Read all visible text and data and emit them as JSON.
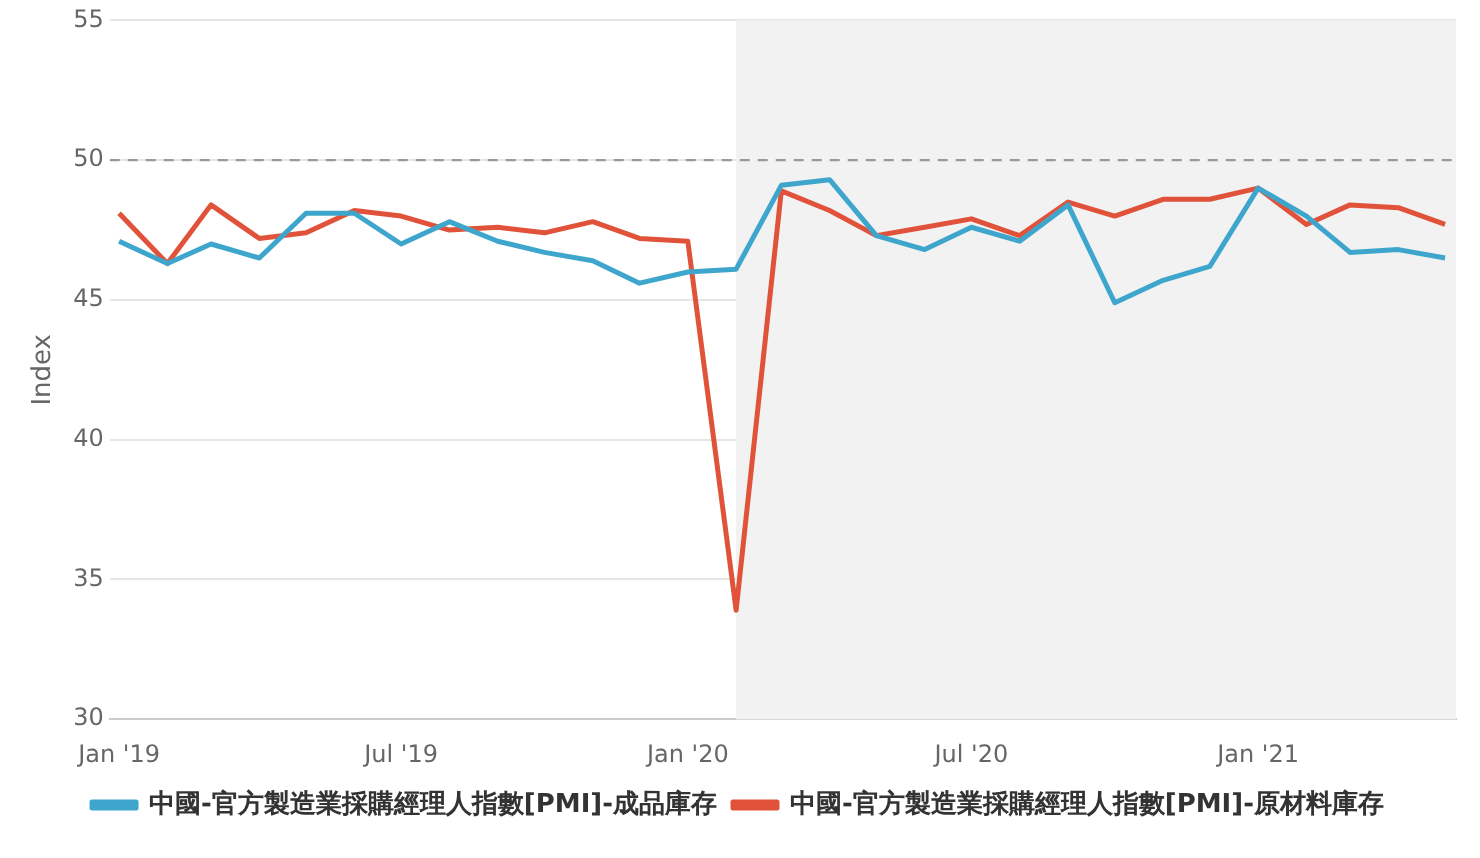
{
  "chart_data": {
    "type": "line",
    "ylabel": "Index",
    "x": [
      "2019-01",
      "2019-02",
      "2019-03",
      "2019-04",
      "2019-05",
      "2019-06",
      "2019-07",
      "2019-08",
      "2019-09",
      "2019-10",
      "2019-11",
      "2019-12",
      "2020-01",
      "2020-02",
      "2020-03",
      "2020-04",
      "2020-05",
      "2020-06",
      "2020-07",
      "2020-08",
      "2020-09",
      "2020-10",
      "2020-11",
      "2020-12",
      "2021-01",
      "2021-02",
      "2021-03",
      "2021-04",
      "2021-05"
    ],
    "series": [
      {
        "name": "中國-官方製造業採購經理人指數[PMI]-成品庫存",
        "color": "#3ea6cc",
        "values": [
          47.1,
          46.3,
          47.0,
          46.5,
          48.1,
          48.1,
          47.0,
          47.8,
          47.1,
          46.7,
          46.4,
          45.6,
          46.0,
          46.1,
          49.1,
          49.3,
          47.3,
          46.8,
          47.6,
          47.1,
          48.4,
          44.9,
          45.7,
          46.2,
          49.0,
          48.0,
          46.7,
          46.8,
          46.5
        ]
      },
      {
        "name": "中國-官方製造業採購經理人指數[PMI]-原材料庫存",
        "color": "#e0533a",
        "values": [
          48.1,
          46.3,
          48.4,
          47.2,
          47.4,
          48.2,
          48.0,
          47.5,
          47.6,
          47.4,
          47.8,
          47.2,
          47.1,
          33.9,
          48.9,
          48.2,
          47.3,
          47.6,
          47.9,
          47.3,
          48.5,
          48.0,
          48.6,
          48.6,
          49.0,
          47.7,
          48.4,
          48.3,
          47.7
        ]
      }
    ],
    "xlim": [
      "2018-12-26",
      "2021-05-08"
    ],
    "xticks": [
      {
        "value": "2019-01",
        "label": "Jan '19"
      },
      {
        "value": "2019-07",
        "label": "Jul '19"
      },
      {
        "value": "2020-01",
        "label": "Jan '20"
      },
      {
        "value": "2020-07",
        "label": "Jul '20"
      },
      {
        "value": "2021-01",
        "label": "Jan '21"
      }
    ],
    "ylim": [
      30,
      55
    ],
    "yticks": [
      30,
      35,
      40,
      45,
      50,
      55
    ],
    "grid": "y",
    "legend": "bottom",
    "marker": "none",
    "line_style": "solid",
    "ref_lines": [
      {
        "axis": "y",
        "value": 50,
        "color": "#999999",
        "line_style": "dashed"
      }
    ],
    "bands": [
      {
        "axis": "x",
        "from": "2020-02",
        "to": "2021-05-08",
        "color": "#f2f2f2"
      }
    ]
  }
}
